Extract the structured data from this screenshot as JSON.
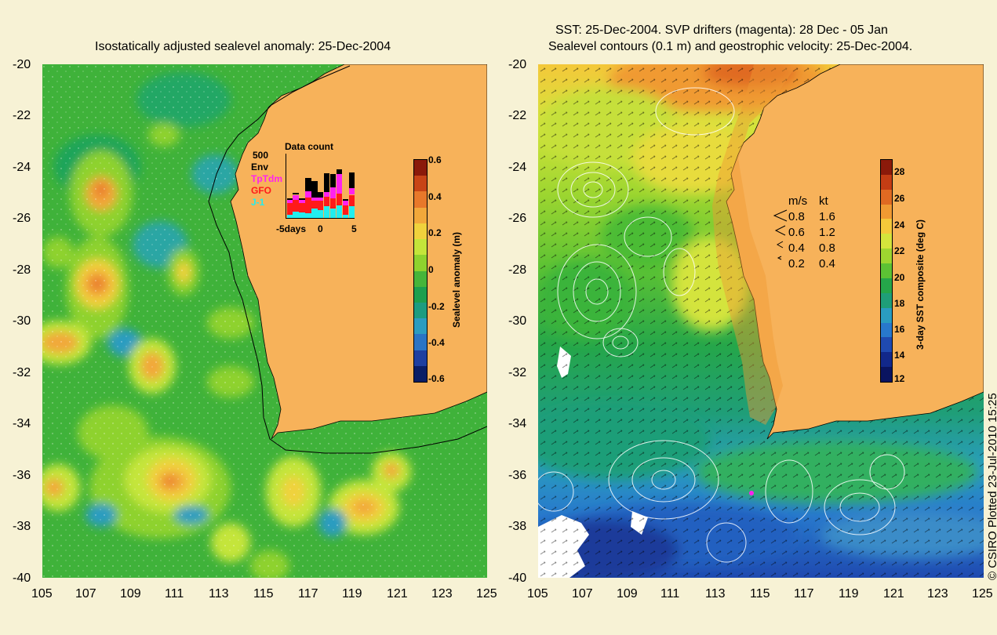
{
  "left_panel": {
    "title": "Isostatically adjusted sealevel anomaly: 25-Dec-2004",
    "lat_ticks": [
      "-20",
      "-22",
      "-24",
      "-26",
      "-28",
      "-30",
      "-32",
      "-34",
      "-36",
      "-38",
      "-40"
    ],
    "lon_ticks": [
      "105",
      "107",
      "109",
      "111",
      "113",
      "115",
      "117",
      "119",
      "121",
      "123",
      "125"
    ],
    "colorbar": {
      "label": "Sealevel anomaly (m)",
      "ticks": [
        "0.6",
        "0.4",
        "0.2",
        "0",
        "-0.2",
        "-0.4",
        "-0.6"
      ],
      "colors": [
        "#8b1a0a",
        "#c84416",
        "#e8782a",
        "#f2a83a",
        "#f0d23c",
        "#c4e53a",
        "#8ed22e",
        "#46b53a",
        "#1d9f4e",
        "#1c9c80",
        "#2c9cc0",
        "#2a74c4",
        "#1e3fa0",
        "#0a1e66"
      ]
    },
    "data_count": {
      "title": "Data count",
      "ymax_label": "500",
      "xticks": [
        "-5days",
        "0",
        "5"
      ],
      "legend": [
        {
          "label": "Env",
          "color": "#000000"
        },
        {
          "label": "TpTdm",
          "color": "#ff22ee"
        },
        {
          "label": "GFO",
          "color": "#ff1a1a"
        },
        {
          "label": "J-1",
          "color": "#22eeee"
        }
      ],
      "bars": [
        {
          "j1": 0.05,
          "gfo": 0.18,
          "tp": 0.05,
          "env": 0.03
        },
        {
          "j1": 0.1,
          "gfo": 0.18,
          "tp": 0.08,
          "env": 0.03
        },
        {
          "j1": 0.08,
          "gfo": 0.15,
          "tp": 0.05,
          "env": 0.02
        },
        {
          "j1": 0.07,
          "gfo": 0.25,
          "tp": 0.1,
          "env": 0.2
        },
        {
          "j1": 0.15,
          "gfo": 0.12,
          "tp": 0.05,
          "env": 0.25
        },
        {
          "j1": 0.12,
          "gfo": 0.15,
          "tp": 0.05,
          "env": 0.08
        },
        {
          "j1": 0.18,
          "gfo": 0.15,
          "tp": 0.07,
          "env": 0.3
        },
        {
          "j1": 0.15,
          "gfo": 0.15,
          "tp": 0.18,
          "env": 0.2
        },
        {
          "j1": 0.2,
          "gfo": 0.18,
          "tp": 0.3,
          "env": 0.08
        },
        {
          "j1": 0.05,
          "gfo": 0.15,
          "tp": 0.07,
          "env": 0.02
        },
        {
          "j1": 0.18,
          "gfo": 0.18,
          "tp": 0.1,
          "env": 0.25
        }
      ]
    }
  },
  "right_panel": {
    "title_line1": "SST: 25-Dec-2004. SVP drifters (magenta): 28 Dec - 05 Jan",
    "title_line2": "Sealevel contours (0.1 m) and geostrophic velocity: 25-Dec-2004.",
    "lat_ticks": [
      "-20",
      "-22",
      "-24",
      "-26",
      "-28",
      "-30",
      "-32",
      "-34",
      "-36",
      "-38",
      "-40"
    ],
    "lon_ticks": [
      "105",
      "107",
      "109",
      "111",
      "113",
      "115",
      "117",
      "119",
      "121",
      "123",
      "125"
    ],
    "colorbar": {
      "label": "3-day SST composite (deg C)",
      "ticks": [
        "28",
        "26",
        "24",
        "22",
        "20",
        "18",
        "16",
        "14",
        "12"
      ],
      "colors": [
        "#8b1a0a",
        "#c43d14",
        "#e06a22",
        "#f09a32",
        "#f4c83a",
        "#d4e43c",
        "#9ed630",
        "#5cc234",
        "#25a64a",
        "#1f9e78",
        "#2a9cc0",
        "#2878cc",
        "#1f4ab0",
        "#12288a",
        "#0a1460"
      ]
    },
    "velocity_legend": {
      "header_ms": "m/s",
      "header_kt": "kt",
      "rows": [
        {
          "ms": "0.8",
          "kt": "1.6"
        },
        {
          "ms": "0.6",
          "kt": "1.2"
        },
        {
          "ms": "0.4",
          "kt": "0.8"
        },
        {
          "ms": "0.2",
          "kt": "0.4"
        }
      ]
    }
  },
  "credit": "© CSIRO Plotted 23-Jul-2010 15:25",
  "land_color": "#f7b25a"
}
